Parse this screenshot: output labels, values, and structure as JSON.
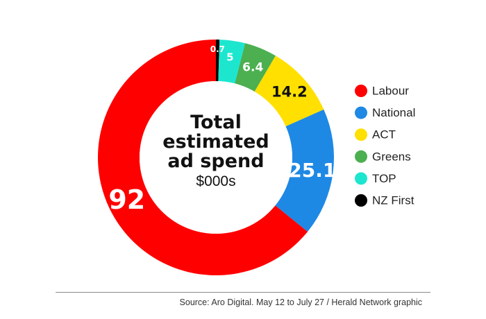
{
  "chart_data": {
    "type": "pie",
    "style": "donut",
    "title_lines": [
      "Total",
      "estimated",
      "ad spend"
    ],
    "unit": "$000s",
    "slices": [
      {
        "name": "NZ First",
        "value": 0.7,
        "label": "0.7",
        "color": "#000000",
        "label_color": "#ffffff"
      },
      {
        "name": "TOP",
        "value": 5,
        "label": "5",
        "color": "#1de6cf",
        "label_color": "#ffffff"
      },
      {
        "name": "Greens",
        "value": 6.4,
        "label": "6.4",
        "color": "#4caf50",
        "label_color": "#ffffff"
      },
      {
        "name": "ACT",
        "value": 14.2,
        "label": "14.2",
        "color": "#ffe000",
        "label_color": "#111111"
      },
      {
        "name": "National",
        "value": 25.1,
        "label": "25.1",
        "color": "#1e88e5",
        "label_color": "#ffffff"
      },
      {
        "name": "Labour",
        "value": 92,
        "label": "92",
        "color": "#ff0000",
        "label_color": "#ffffff"
      }
    ],
    "legend": {
      "placement": "right",
      "items": [
        {
          "name": "Labour",
          "color": "#ff0000"
        },
        {
          "name": "National",
          "color": "#1e88e5"
        },
        {
          "name": "ACT",
          "color": "#ffe000"
        },
        {
          "name": "Greens",
          "color": "#4caf50"
        },
        {
          "name": "TOP",
          "color": "#1de6cf"
        },
        {
          "name": "NZ First",
          "color": "#000000"
        }
      ]
    }
  },
  "source": "Source: Aro Digital. May 12 to July 27 / Herald Network graphic"
}
